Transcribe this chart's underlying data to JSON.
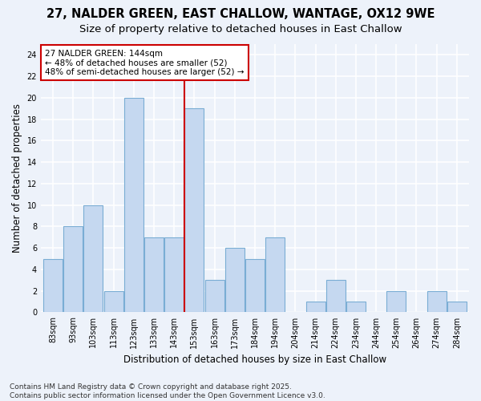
{
  "title_line1": "27, NALDER GREEN, EAST CHALLOW, WANTAGE, OX12 9WE",
  "title_line2": "Size of property relative to detached houses in East Challow",
  "xlabel": "Distribution of detached houses by size in East Challow",
  "ylabel": "Number of detached properties",
  "categories": [
    "83sqm",
    "93sqm",
    "103sqm",
    "113sqm",
    "123sqm",
    "133sqm",
    "143sqm",
    "153sqm",
    "163sqm",
    "173sqm",
    "184sqm",
    "194sqm",
    "204sqm",
    "214sqm",
    "224sqm",
    "234sqm",
    "244sqm",
    "254sqm",
    "264sqm",
    "274sqm",
    "284sqm"
  ],
  "values": [
    5,
    8,
    10,
    2,
    20,
    7,
    7,
    19,
    3,
    6,
    5,
    7,
    0,
    1,
    3,
    1,
    0,
    2,
    0,
    2,
    1
  ],
  "bar_color": "#c5d8f0",
  "bar_edge_color": "#7aadd4",
  "vline_color": "#cc0000",
  "vline_x": 6,
  "annotation_line1": "27 NALDER GREEN: 144sqm",
  "annotation_line2": "← 48% of detached houses are smaller (52)",
  "annotation_line3": "48% of semi-detached houses are larger (52) →",
  "annotation_box_color": "#ffffff",
  "annotation_box_edge": "#cc0000",
  "ylim": [
    0,
    25
  ],
  "yticks": [
    0,
    2,
    4,
    6,
    8,
    10,
    12,
    14,
    16,
    18,
    20,
    22,
    24
  ],
  "footnote": "Contains HM Land Registry data © Crown copyright and database right 2025.\nContains public sector information licensed under the Open Government Licence v3.0.",
  "background_color": "#edf2fa",
  "grid_color": "#ffffff",
  "title_fontsize": 10.5,
  "subtitle_fontsize": 9.5,
  "axis_label_fontsize": 8.5,
  "tick_fontsize": 7,
  "annotation_fontsize": 7.5,
  "footnote_fontsize": 6.5
}
